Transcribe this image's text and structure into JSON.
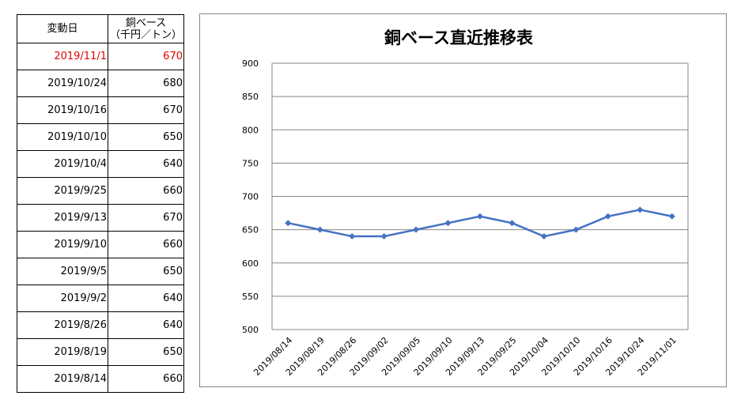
{
  "table": {
    "header_date": "変動日",
    "header_price_line1": "銅ベース",
    "header_price_line2": "（千円／トン）",
    "rows": [
      {
        "date": "2019/11/1",
        "price": "670",
        "highlight": true
      },
      {
        "date": "2019/10/24",
        "price": "680",
        "highlight": false
      },
      {
        "date": "2019/10/16",
        "price": "670",
        "highlight": false
      },
      {
        "date": "2019/10/10",
        "price": "650",
        "highlight": false
      },
      {
        "date": "2019/10/4",
        "price": "640",
        "highlight": false
      },
      {
        "date": "2019/9/25",
        "price": "660",
        "highlight": false
      },
      {
        "date": "2019/9/13",
        "price": "670",
        "highlight": false
      },
      {
        "date": "2019/9/10",
        "price": "660",
        "highlight": false
      },
      {
        "date": "2019/9/5",
        "price": "650",
        "highlight": false
      },
      {
        "date": "2019/9/2",
        "price": "640",
        "highlight": false
      },
      {
        "date": "2019/8/26",
        "price": "640",
        "highlight": false
      },
      {
        "date": "2019/8/19",
        "price": "650",
        "highlight": false
      },
      {
        "date": "2019/8/14",
        "price": "660",
        "highlight": false
      }
    ],
    "highlight_color": "#e00000"
  },
  "chart_data": {
    "type": "line",
    "title": "銅ベース直近推移表",
    "xlabel": "",
    "ylabel": "",
    "x": [
      "2019/08/14",
      "2019/08/19",
      "2019/08/26",
      "2019/09/02",
      "2019/09/05",
      "2019/09/10",
      "2019/09/13",
      "2019/09/25",
      "2019/10/04",
      "2019/10/10",
      "2019/10/16",
      "2019/10/24",
      "2019/11/01"
    ],
    "series": [
      {
        "values": [
          660,
          650,
          640,
          640,
          650,
          660,
          670,
          660,
          640,
          650,
          670,
          680,
          670
        ]
      }
    ],
    "ylim": [
      500,
      900
    ],
    "yticks": [
      500,
      550,
      600,
      650,
      700,
      750,
      800,
      850,
      900
    ],
    "grid": true,
    "legend": "none",
    "line_color": "#4472c4"
  }
}
